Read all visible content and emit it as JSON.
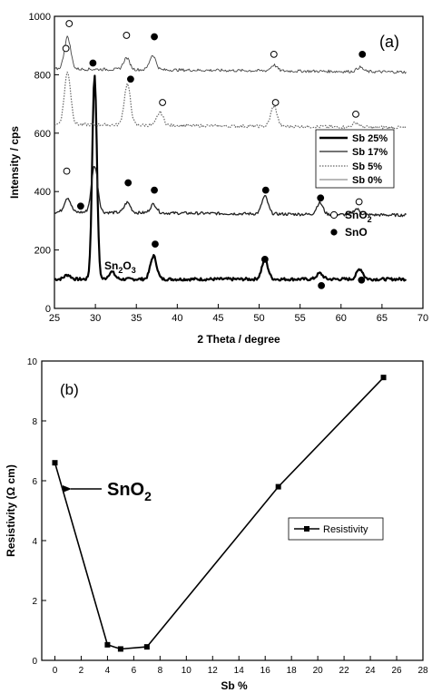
{
  "chart_data": [
    {
      "type": "line",
      "panel_label": "(a)",
      "xlabel": "2 Theta / degree",
      "ylabel": "Intensity / cps",
      "xlim": [
        25,
        70
      ],
      "ylim": [
        0,
        1000
      ],
      "xticks": [
        25,
        30,
        35,
        40,
        45,
        50,
        55,
        60,
        65,
        70
      ],
      "yticks": [
        0,
        200,
        400,
        600,
        800,
        1000
      ],
      "legend_position": "right",
      "series": [
        {
          "name": "Sb 25%",
          "style": "solid-thick",
          "color": "#000000",
          "baseline": 100,
          "peaks": [
            [
              26.6,
              15
            ],
            [
              29.9,
              700
            ],
            [
              32.0,
              25
            ],
            [
              37.1,
              80
            ],
            [
              50.7,
              65
            ],
            [
              57.4,
              20
            ],
            [
              62.3,
              35
            ]
          ]
        },
        {
          "name": "Sb 17%",
          "style": "solid",
          "color": "#222222",
          "baseline": 330,
          "peaks": [
            [
              26.6,
              50
            ],
            [
              29.9,
              160
            ],
            [
              33.9,
              35
            ],
            [
              37.1,
              30
            ],
            [
              50.7,
              60
            ],
            [
              57.4,
              40
            ],
            [
              61.9,
              20
            ]
          ]
        },
        {
          "name": "Sb 5%",
          "style": "dotted",
          "color": "#666666",
          "baseline": 630,
          "peaks": [
            [
              26.6,
              180
            ],
            [
              33.9,
              140
            ],
            [
              37.9,
              45
            ],
            [
              51.8,
              70
            ],
            [
              61.8,
              15
            ]
          ]
        },
        {
          "name": "Sb 0%",
          "style": "solid-thin",
          "color": "#444444",
          "baseline": 820,
          "peaks": [
            [
              26.6,
              110
            ],
            [
              33.8,
              40
            ],
            [
              37.0,
              50
            ],
            [
              51.8,
              20
            ],
            [
              62.3,
              15
            ]
          ]
        }
      ],
      "markers": [
        {
          "x": 26.8,
          "y": 975,
          "kind": "SnO2"
        },
        {
          "x": 33.8,
          "y": 935,
          "kind": "SnO2"
        },
        {
          "x": 37.2,
          "y": 930,
          "kind": "SnO"
        },
        {
          "x": 51.8,
          "y": 870,
          "kind": "SnO2"
        },
        {
          "x": 62.6,
          "y": 870,
          "kind": "SnO"
        },
        {
          "x": 26.4,
          "y": 890,
          "kind": "SnO2"
        },
        {
          "x": 29.7,
          "y": 840,
          "kind": "SnO"
        },
        {
          "x": 34.3,
          "y": 785,
          "kind": "SnO"
        },
        {
          "x": 38.2,
          "y": 705,
          "kind": "SnO2"
        },
        {
          "x": 52.0,
          "y": 705,
          "kind": "SnO2"
        },
        {
          "x": 61.8,
          "y": 665,
          "kind": "SnO2"
        },
        {
          "x": 26.5,
          "y": 470,
          "kind": "SnO2"
        },
        {
          "x": 34.0,
          "y": 430,
          "kind": "SnO"
        },
        {
          "x": 37.2,
          "y": 405,
          "kind": "SnO"
        },
        {
          "x": 50.8,
          "y": 405,
          "kind": "SnO"
        },
        {
          "x": 57.5,
          "y": 378,
          "kind": "SnO"
        },
        {
          "x": 62.2,
          "y": 365,
          "kind": "SnO2"
        },
        {
          "x": 28.2,
          "y": 350,
          "kind": "SnO"
        },
        {
          "x": 37.3,
          "y": 220,
          "kind": "SnO"
        },
        {
          "x": 50.7,
          "y": 168,
          "kind": "SnO"
        },
        {
          "x": 57.6,
          "y": 78,
          "kind": "SnO"
        },
        {
          "x": 62.5,
          "y": 97,
          "kind": "SnO"
        }
      ],
      "marker_legend": [
        {
          "kind": "SnO2",
          "label": "SnO",
          "sub": "2"
        },
        {
          "kind": "SnO",
          "label": "SnO",
          "sub": ""
        }
      ],
      "annotation": {
        "label": "Sn",
        "sub1": "2",
        "mid": "O",
        "sub2": "3",
        "x": 31.0,
        "y": 150
      }
    },
    {
      "type": "line",
      "panel_label": "(b)",
      "xlabel": "Sb %",
      "ylabel": "Resistivity (Ω cm)",
      "xlim": [
        -1,
        28
      ],
      "ylim": [
        0,
        10
      ],
      "xticks": [
        0,
        2,
        4,
        6,
        8,
        10,
        12,
        14,
        16,
        18,
        20,
        22,
        24,
        26,
        28
      ],
      "yticks": [
        0,
        2,
        4,
        6,
        8,
        10
      ],
      "legend_position": "right",
      "series": [
        {
          "name": "Resistivity",
          "color": "#000000",
          "x": [
            0,
            4,
            5,
            7,
            17,
            25
          ],
          "y": [
            6.6,
            0.52,
            0.38,
            0.45,
            5.8,
            9.45
          ]
        }
      ],
      "annotation": {
        "label": "SnO",
        "sub": "2",
        "x": 0,
        "y": 6.6
      }
    }
  ]
}
